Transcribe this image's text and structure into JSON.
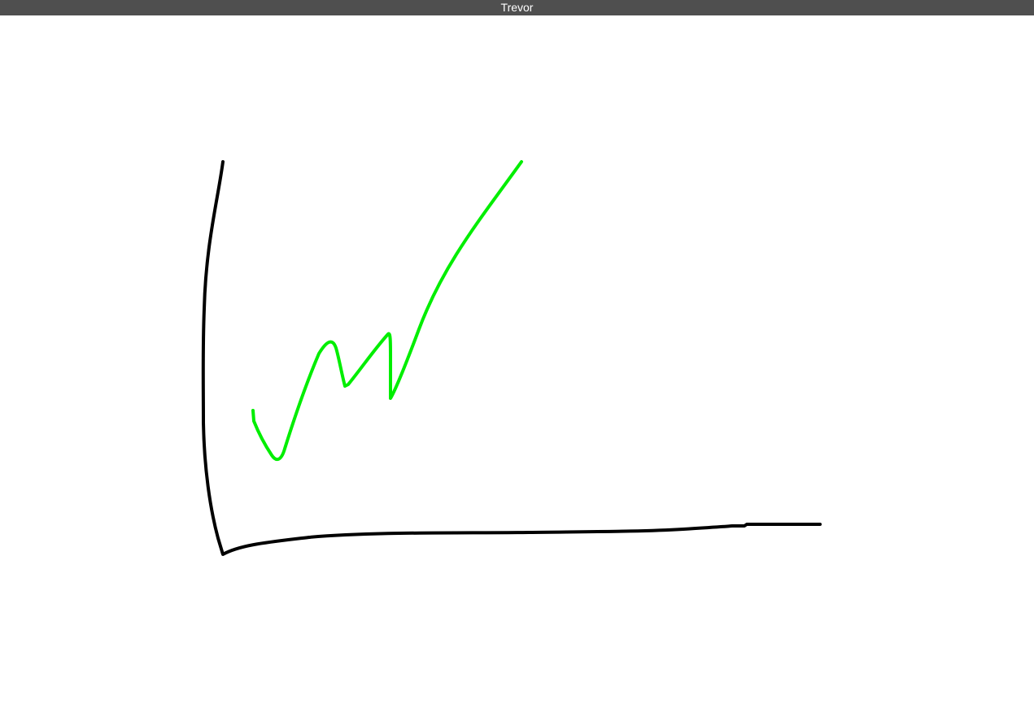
{
  "window": {
    "title": "Trevor"
  },
  "canvas": {
    "background": "#ffffff",
    "strokes": [
      {
        "name": "black-axes-stroke",
        "color": "#000000"
      },
      {
        "name": "green-line-stroke",
        "color": "#00ee00"
      }
    ]
  }
}
